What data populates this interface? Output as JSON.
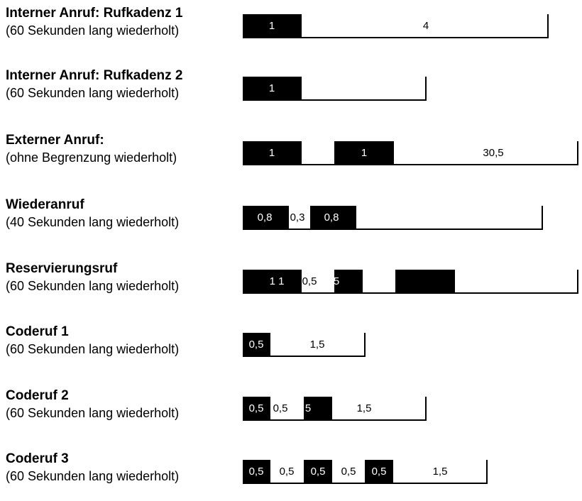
{
  "rows": [
    {
      "title": "Interner Anruf: Rufkadenz 1",
      "subtitle": "(60 Sekunden lang wiederholt)",
      "labels": [
        "1",
        "4"
      ]
    },
    {
      "title": "Interner Anruf: Rufkadenz 2",
      "subtitle": "(60 Sekunden lang wiederholt)",
      "labels": [
        "1"
      ]
    },
    {
      "title": "Externer Anruf:",
      "subtitle": "(ohne Begrenzung wiederholt)",
      "labels": [
        "1",
        "1",
        "30,5"
      ]
    },
    {
      "title": "Wiederanruf",
      "subtitle": "(40 Sekunden lang wiederholt)",
      "labels": [
        "0,8",
        "0,3",
        "0,8"
      ]
    },
    {
      "title": "Reservierungsruf",
      "subtitle": "(60 Sekunden lang wiederholt)",
      "labels": [
        "1 1",
        "0,5",
        "5"
      ]
    },
    {
      "title": "Coderuf 1",
      "subtitle": "(60 Sekunden lang wiederholt)",
      "labels": [
        "0,5",
        "1,5"
      ]
    },
    {
      "title": "Coderuf 2",
      "subtitle": "(60 Sekunden lang wiederholt)",
      "labels": [
        "0,5",
        "0,5",
        "5",
        "1,5"
      ]
    },
    {
      "title": "Coderuf 3",
      "subtitle": "(60 Sekunden lang wiederholt)",
      "labels": [
        "0,5",
        "0,5",
        "0,5",
        "0,5",
        "0,5",
        "1,5"
      ]
    }
  ]
}
